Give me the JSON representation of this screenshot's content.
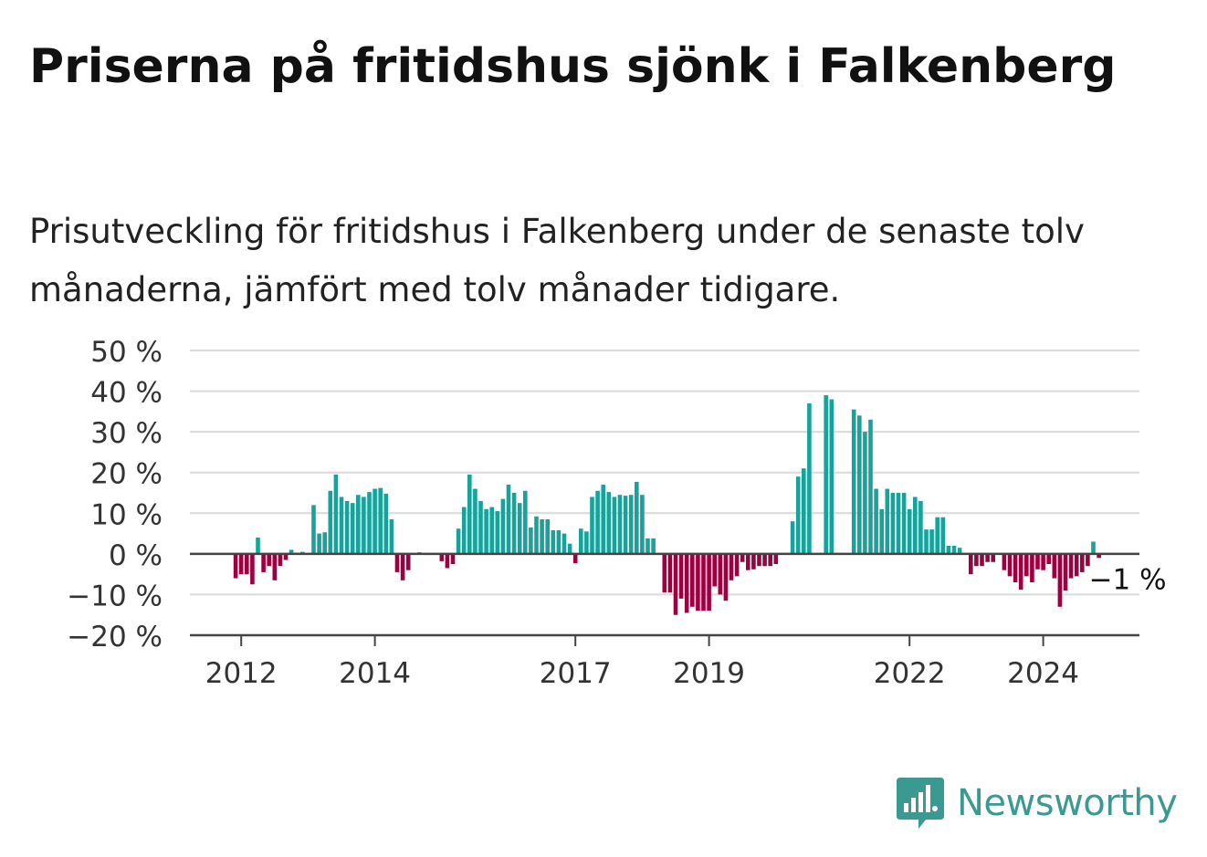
{
  "title": "Priserna på fritidshus sjönk i Falkenberg",
  "subtitle": "Prisutveckling för fritidshus i Falkenberg under de senaste tolv månaderna, jämfört med tolv månader tidigare.",
  "brand": {
    "name": "Newsworthy",
    "icon": "newsworthy-chart-bubble-icon",
    "color": "#3a9a91"
  },
  "colors": {
    "positive": "#16a39c",
    "negative": "#9c0040",
    "zero_line": "#444444",
    "grid": "#d9d9d9"
  },
  "chart_data": {
    "type": "bar",
    "x_start": "2011-11",
    "frequency": "monthly",
    "ylim": [
      -20,
      50
    ],
    "yticks": [
      -20,
      -10,
      0,
      10,
      20,
      30,
      40,
      50
    ],
    "ytick_labels": [
      "−20 %",
      "−10 %",
      "0 %",
      "10 %",
      "20 %",
      "30 %",
      "40 %",
      "50 %"
    ],
    "xticks": [
      "2012",
      "2014",
      "2017",
      "2019",
      "2022",
      "2024"
    ],
    "annotation": {
      "text": "−1 %",
      "month": "2025-04"
    },
    "values": [
      null,
      -6,
      -5,
      -5,
      -7.5,
      4,
      -4.5,
      -3,
      -6.5,
      -3,
      -1.5,
      1,
      0.3,
      0.5,
      0.2,
      12,
      5,
      5.3,
      15.5,
      19.5,
      14,
      13,
      12.5,
      14.5,
      14,
      15.2,
      16,
      16.2,
      14.8,
      8.5,
      -4.5,
      -6.5,
      -4,
      null,
      0.4,
      null,
      null,
      null,
      -1.8,
      -3.5,
      -2.5,
      6.2,
      11.5,
      19.5,
      16,
      13,
      11,
      11.5,
      10.5,
      13.5,
      17,
      15,
      12.5,
      15.5,
      6.5,
      9.2,
      8.5,
      8.5,
      5.8,
      5.8,
      5,
      2.5,
      -2.3,
      6.2,
      5.5,
      14,
      15.5,
      17,
      15.2,
      14,
      14.5,
      14.3,
      14.5,
      17.7,
      14.5,
      3.8,
      3.8,
      null,
      -9.5,
      -9.5,
      -15,
      -11,
      -14.5,
      -13,
      -14,
      -14,
      -14,
      -8,
      -10,
      -11.5,
      -6.5,
      -5.5,
      -2,
      -4,
      -3.8,
      -3,
      -3,
      -3,
      -2.5,
      null,
      null,
      8,
      19,
      21,
      37,
      null,
      null,
      39,
      38,
      null,
      null,
      null,
      35.5,
      34,
      30,
      33,
      16,
      11,
      16,
      15,
      15,
      15,
      11,
      14,
      13,
      6,
      6,
      9,
      9,
      2,
      2,
      1.5,
      null,
      -5,
      -3,
      -3,
      -2,
      -2,
      null,
      -4,
      -5.5,
      -7,
      -8.8,
      -5.5,
      -7,
      -3.8,
      -4,
      -2.5,
      -6,
      -13,
      -9,
      -6,
      -5.5,
      -4.5,
      -3,
      3,
      -1
    ]
  }
}
